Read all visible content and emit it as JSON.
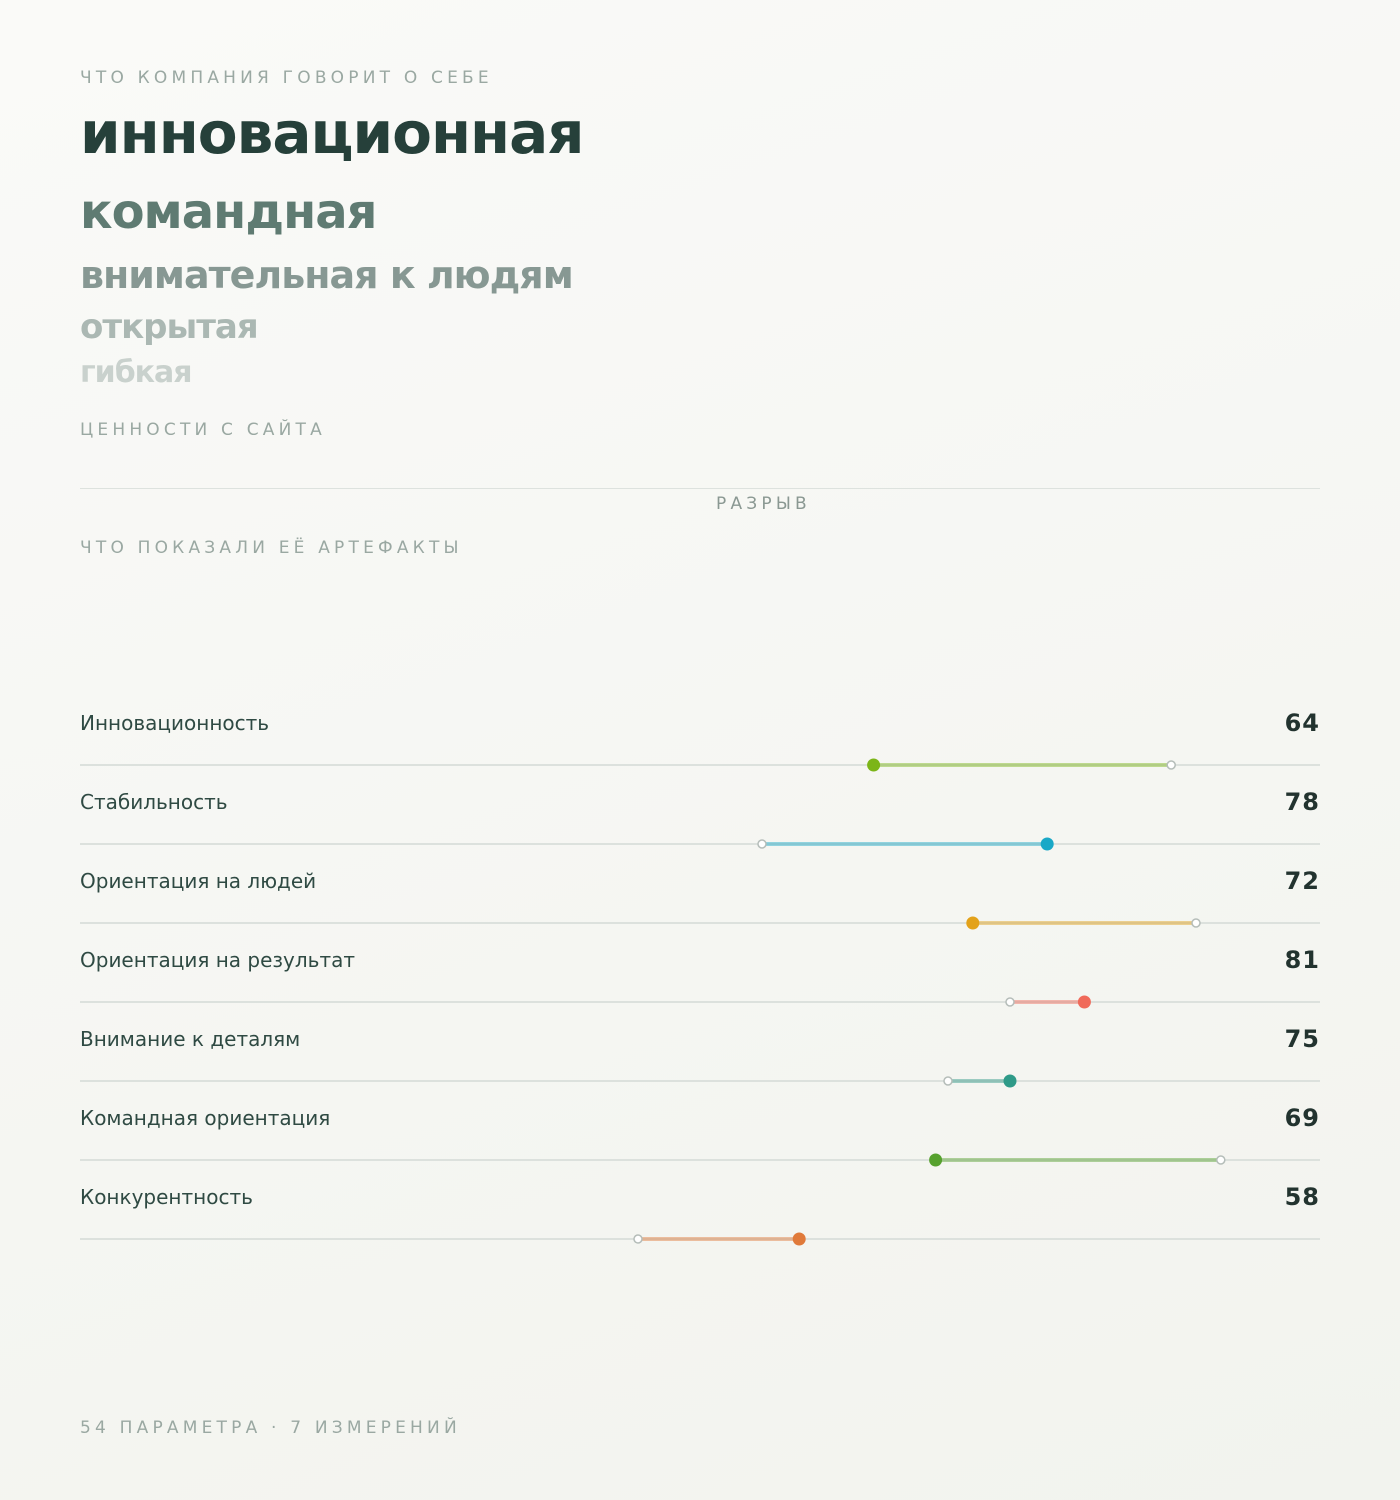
{
  "header": {
    "kicker": "ЧТО КОМПАНИЯ ГОВОРИТ О СЕБЕ",
    "values": [
      "инновационная",
      "командная",
      "внимательная к людям",
      "открытая",
      "гибкая"
    ],
    "values_caption": "ЦЕННОСТИ С САЙТА"
  },
  "gap_label": "РАЗРЫВ",
  "artifacts_kicker": "ЧТО ПОКАЗАЛИ ЕЁ АРТЕФАКТЫ",
  "footer": "54 ПАРАМЕТРА · 7 ИЗМЕРЕНИЙ",
  "chart_data": {
    "type": "dumbbell",
    "xlim": [
      0,
      100
    ],
    "grid": false,
    "legend": "none",
    "rows": [
      {
        "label": "Инновационность",
        "score": 64,
        "actual": 64,
        "claimed": 88,
        "color": "#7cb518"
      },
      {
        "label": "Стабильность",
        "score": 78,
        "actual": 78,
        "claimed": 55,
        "color": "#1aa8c7"
      },
      {
        "label": "Ориентация на людей",
        "score": 72,
        "actual": 72,
        "claimed": 90,
        "color": "#e3a21a"
      },
      {
        "label": "Ориентация на результат",
        "score": 81,
        "actual": 81,
        "claimed": 75,
        "color": "#f06a5a"
      },
      {
        "label": "Внимание к деталям",
        "score": 75,
        "actual": 75,
        "claimed": 70,
        "color": "#2e9a88"
      },
      {
        "label": "Командная ориентация",
        "score": 69,
        "actual": 69,
        "claimed": 92,
        "color": "#56a12e"
      },
      {
        "label": "Конкурентность",
        "score": 58,
        "actual": 58,
        "claimed": 45,
        "color": "#e07a3a"
      }
    ]
  }
}
